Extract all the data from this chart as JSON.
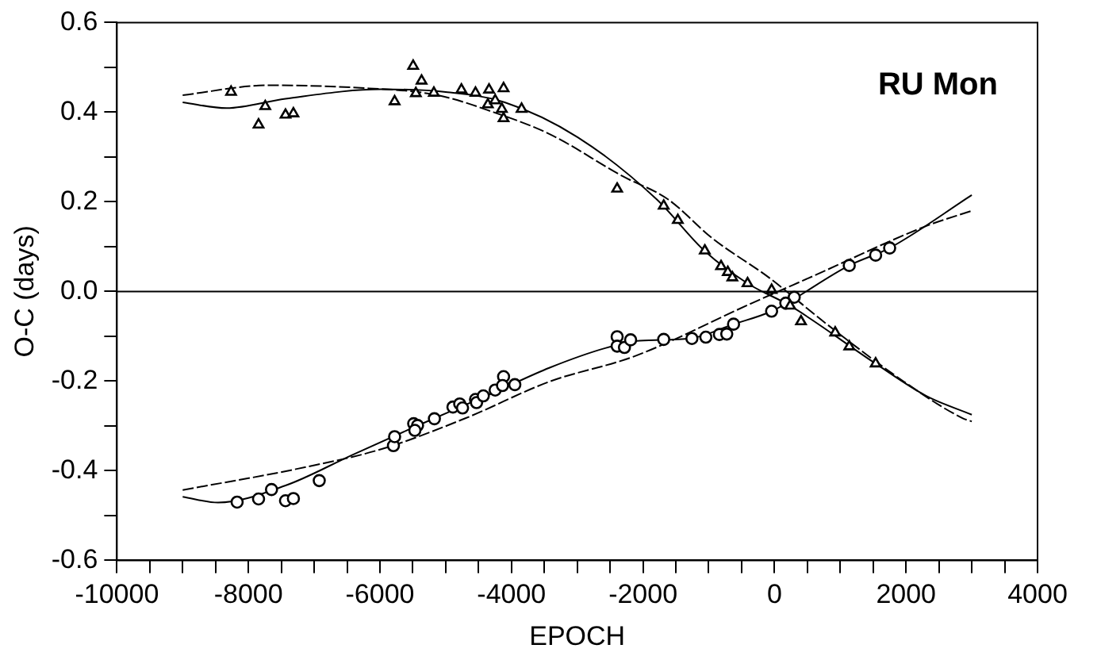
{
  "chart_data": {
    "type": "scatter",
    "xlabel": "EPOCH",
    "ylabel": "O-C (days)",
    "annotations": [
      "RU Mon"
    ],
    "grid": false,
    "legend": false,
    "xlim": [
      -10000,
      4000
    ],
    "ylim": [
      -0.6,
      0.6
    ],
    "xticks": [
      -10000,
      {
        "value": -9500,
        "label": null
      },
      {
        "value": -9000,
        "label": null
      },
      {
        "value": -8500,
        "label": null
      },
      -8000,
      {
        "value": -7500,
        "label": null
      },
      {
        "value": -7000,
        "label": null
      },
      {
        "value": -6500,
        "label": null
      },
      -6000,
      {
        "value": -5500,
        "label": null
      },
      {
        "value": -5000,
        "label": null
      },
      {
        "value": -4500,
        "label": null
      },
      -4000,
      {
        "value": -3500,
        "label": null
      },
      {
        "value": -3000,
        "label": null
      },
      {
        "value": -2500,
        "label": null
      },
      -2000,
      {
        "value": -1500,
        "label": null
      },
      {
        "value": -1000,
        "label": null
      },
      {
        "value": -500,
        "label": null
      },
      0,
      {
        "value": 500,
        "label": null
      },
      {
        "value": 1000,
        "label": null
      },
      {
        "value": 1500,
        "label": null
      },
      2000,
      {
        "value": 2500,
        "label": null
      },
      {
        "value": 3000,
        "label": null
      },
      {
        "value": 3500,
        "label": null
      },
      4000
    ],
    "yticks": [
      -0.6,
      {
        "value": -0.5,
        "label": null
      },
      -0.4,
      {
        "value": -0.3,
        "label": null
      },
      -0.2,
      {
        "value": -0.1,
        "label": null
      },
      {
        "value": 0,
        "label": "0.0"
      },
      {
        "value": 0.1,
        "label": null
      },
      0.2,
      {
        "value": 0.3,
        "label": null
      },
      0.4,
      {
        "value": 0.5,
        "label": null
      },
      0.6
    ],
    "ref_lines": [
      {
        "axis": "y",
        "value": 0,
        "color": "#000000"
      }
    ],
    "series": [
      {
        "type": "scatter",
        "marker": "triangle",
        "color": "#000000",
        "x": [
          -8264,
          -7846,
          -7744,
          -7436,
          -7316,
          -5777,
          -5495,
          -5367,
          -5454,
          -5180,
          -4761,
          -4547,
          -4341,
          -4120,
          -4359,
          -4248,
          -4146,
          -4120,
          -3846,
          -2393,
          -1685,
          -1470,
          -1060,
          -813,
          -710,
          -641,
          -410,
          -44,
          238,
          403,
          923,
          1137,
          1538
        ],
        "values": [
          0.445,
          0.372,
          0.413,
          0.394,
          0.397,
          0.424,
          0.503,
          0.47,
          0.442,
          0.443,
          0.45,
          0.443,
          0.45,
          0.453,
          0.417,
          0.426,
          0.407,
          0.386,
          0.407,
          0.229,
          0.191,
          0.159,
          0.091,
          0.056,
          0.043,
          0.031,
          0.018,
          0.003,
          -0.032,
          -0.067,
          -0.092,
          -0.123,
          -0.161
        ]
      },
      {
        "type": "scatter",
        "marker": "circle",
        "color": "#000000",
        "x": [
          -8172,
          -7846,
          -7649,
          -7436,
          -7316,
          -6923,
          -5795,
          -5777,
          -5487,
          -5428,
          -5469,
          -5172,
          -4890,
          -4787,
          -4744,
          -4547,
          -4531,
          -4428,
          -4248,
          -4120,
          -4136,
          -3949,
          -2393,
          -2393,
          -2282,
          -2188,
          -1685,
          -1256,
          -1044,
          -838,
          -726,
          -623,
          -44,
          172,
          300,
          1137,
          1538,
          1751
        ],
        "values": [
          -0.47,
          -0.463,
          -0.442,
          -0.467,
          -0.462,
          -0.422,
          -0.344,
          -0.324,
          -0.295,
          -0.299,
          -0.31,
          -0.284,
          -0.258,
          -0.251,
          -0.26,
          -0.241,
          -0.248,
          -0.233,
          -0.22,
          -0.19,
          -0.21,
          -0.208,
          -0.101,
          -0.122,
          -0.125,
          -0.108,
          -0.107,
          -0.105,
          -0.102,
          -0.096,
          -0.095,
          -0.073,
          -0.044,
          -0.026,
          -0.013,
          0.058,
          0.081,
          0.097
        ]
      },
      {
        "type": "line",
        "line_style": "solid",
        "color": "#000000",
        "x": [
          -9000,
          -8333,
          -7436,
          -5982,
          -5000,
          -4103,
          -2992,
          -1795,
          -1060,
          -410,
          238,
          1538,
          2308,
          3000
        ],
        "values": [
          0.422,
          0.409,
          0.43,
          0.451,
          0.445,
          0.422,
          0.344,
          0.206,
          0.09,
          0.018,
          -0.032,
          -0.161,
          -0.233,
          -0.275
        ]
      },
      {
        "type": "line",
        "line_style": "dashed",
        "color": "#000000",
        "x": [
          -9000,
          -7692,
          -6410,
          -5128,
          -4274,
          -3419,
          -2308,
          -1624,
          -940,
          -85,
          769,
          1966,
          2864,
          3000
        ],
        "values": [
          0.438,
          0.46,
          0.455,
          0.438,
          0.4,
          0.351,
          0.257,
          0.206,
          0.118,
          0.031,
          -0.07,
          -0.201,
          -0.283,
          -0.29
        ]
      },
      {
        "type": "line",
        "line_style": "solid",
        "color": "#000000",
        "x": [
          -9000,
          -8462,
          -7436,
          -6410,
          -5469,
          -4274,
          -3419,
          -2564,
          -2051,
          -1282,
          -623,
          -44,
          1137,
          1751,
          3000
        ],
        "values": [
          -0.458,
          -0.471,
          -0.433,
          -0.364,
          -0.302,
          -0.226,
          -0.17,
          -0.126,
          -0.11,
          -0.105,
          -0.073,
          -0.044,
          0.058,
          0.097,
          0.215
        ]
      },
      {
        "type": "line",
        "line_style": "dashed",
        "color": "#000000",
        "x": [
          -9000,
          -7265,
          -5982,
          -4701,
          -3419,
          -2137,
          -342,
          598,
          2308,
          3000
        ],
        "values": [
          -0.443,
          -0.396,
          -0.352,
          -0.283,
          -0.201,
          -0.145,
          -0.026,
          0.035,
          0.146,
          0.18
        ]
      }
    ]
  }
}
